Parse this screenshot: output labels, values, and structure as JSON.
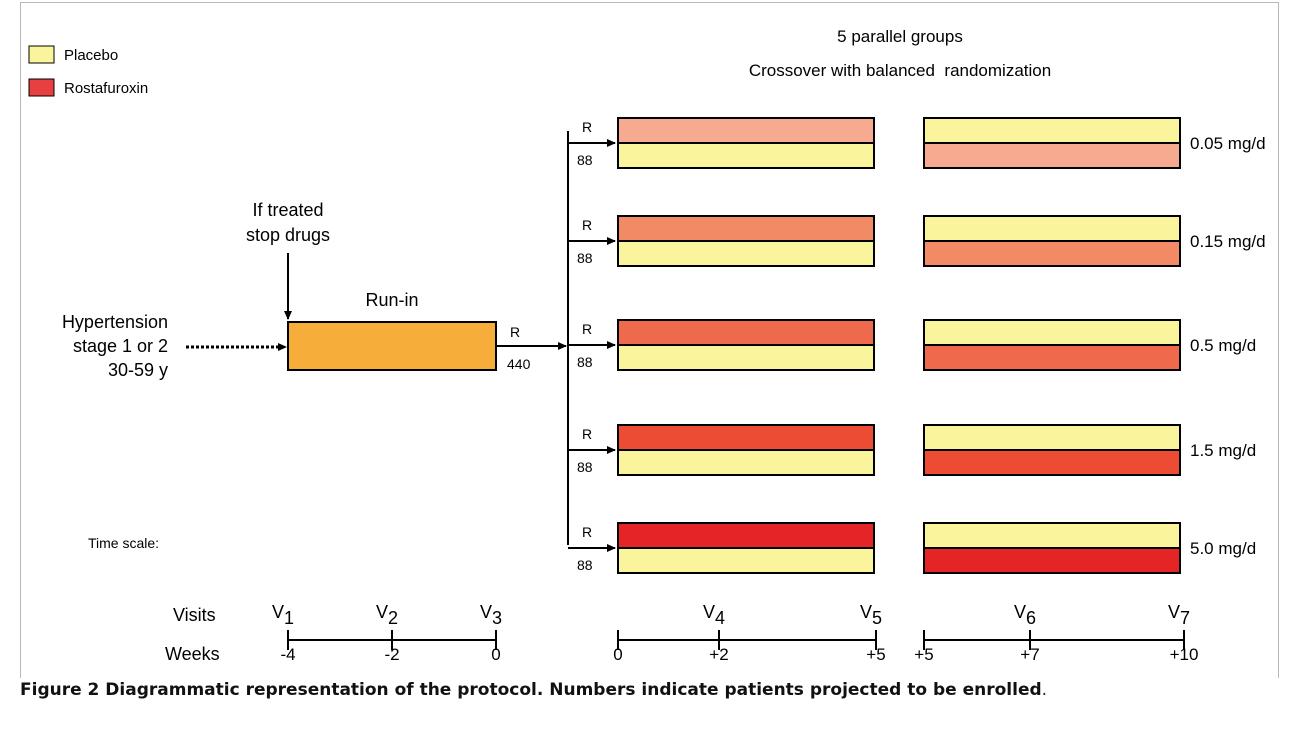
{
  "legend": {
    "items": [
      {
        "label": "Placebo",
        "color": "#faf59c"
      },
      {
        "label": "Rostafuroxin",
        "color": "#e84040"
      }
    ]
  },
  "header": {
    "line1": "5 parallel groups",
    "line2": "Crossover with balanced  randomization"
  },
  "entry": {
    "lines": [
      "Hypertension",
      "stage 1 or 2",
      "30-59 y"
    ]
  },
  "stop_note": {
    "lines": [
      "If treated",
      "stop drugs"
    ]
  },
  "runin": {
    "label": "Run-in",
    "color": "#f7ad3a",
    "r_label": "R",
    "n_label": "440"
  },
  "groups": [
    {
      "r_label": "R",
      "n_label": "88",
      "dose": "0.05 mg/d",
      "rostafuroxin_color": "#f6ab90"
    },
    {
      "r_label": "R",
      "n_label": "88",
      "dose": "0.15 mg/d",
      "rostafuroxin_color": "#f28a66"
    },
    {
      "r_label": "R",
      "n_label": "88",
      "dose": "0.5 mg/d",
      "rostafuroxin_color": "#ef6a4d"
    },
    {
      "r_label": "R",
      "n_label": "88",
      "dose": "1.5 mg/d",
      "rostafuroxin_color": "#ec4b34"
    },
    {
      "r_label": "R",
      "n_label": "88",
      "dose": "5.0 mg/d",
      "rostafuroxin_color": "#e52426"
    }
  ],
  "placebo_color": "#faf59c",
  "timescale": {
    "label": "Time scale:",
    "visits_label": "Visits",
    "weeks_label": "Weeks",
    "segments": [
      {
        "visits": [
          {
            "v": "V",
            "sub": "1"
          },
          {
            "v": "V",
            "sub": "2"
          },
          {
            "v": "V",
            "sub": "3"
          }
        ],
        "weeks": [
          "-4",
          "-2",
          "0"
        ]
      },
      {
        "visits": [
          {
            "v": "",
            "sub": ""
          },
          {
            "v": "V",
            "sub": "4"
          },
          {
            "v": "V",
            "sub": "5"
          }
        ],
        "weeks": [
          "0",
          "+2",
          "+5"
        ]
      },
      {
        "visits": [
          {
            "v": "",
            "sub": ""
          },
          {
            "v": "V",
            "sub": "6"
          },
          {
            "v": "V",
            "sub": "7"
          }
        ],
        "weeks": [
          "+5",
          "+7",
          "+10"
        ]
      }
    ]
  },
  "caption": {
    "bold": "Figure 2 Diagrammatic representation of the protocol. Numbers indicate patients projected to be enrolled",
    "tail": "."
  }
}
